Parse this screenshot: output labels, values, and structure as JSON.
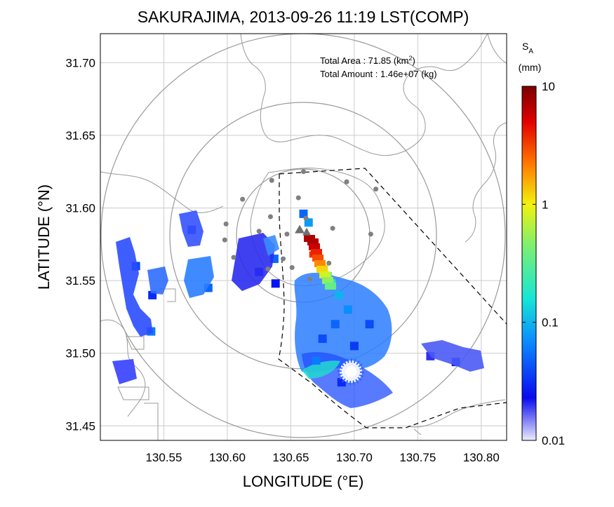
{
  "chart_data": {
    "type": "heatmap",
    "title": "SAKURAJIMA, 2013-09-26 11:19 LST(COMP)",
    "xlabel": "LONGITUDE (°E)",
    "ylabel": "LATITUDE (°N)",
    "xlim": [
      130.5,
      130.82
    ],
    "ylim": [
      31.44,
      31.72
    ],
    "xticks": [
      "130.55",
      "130.60",
      "130.65",
      "130.70",
      "130.75",
      "130.80"
    ],
    "yticks": [
      "31.45",
      "31.50",
      "31.55",
      "31.60",
      "31.65",
      "31.70"
    ],
    "annotation": {
      "area_label": "Total Area",
      "area_value": "71.85",
      "area_unit_base": "(km",
      "area_unit_exp": "2",
      "area_unit_close": ")",
      "amount_label": "Total Amount",
      "amount_value": "1.46e+07",
      "amount_unit": "(kg)"
    },
    "colorbar": {
      "symbol": "S",
      "subscript": "A",
      "unit": "(mm)",
      "scale": "log",
      "range": [
        0.01,
        10
      ],
      "ticks": [
        "10",
        "1",
        "0.1",
        "0.01"
      ],
      "colormap": [
        "#ececfd",
        "#0a0af0",
        "#0a8cff",
        "#16e6d6",
        "#f2f20c",
        "#ff7a00",
        "#e30000",
        "#7a0000"
      ]
    },
    "volcano": {
      "lon": 130.657,
      "lat": 31.585,
      "marker": "triangle"
    },
    "range_circles_km": [
      5,
      10,
      15
    ],
    "stations": [
      [
        130.635,
        31.619
      ],
      [
        130.66,
        31.625
      ],
      [
        130.694,
        31.618
      ],
      [
        130.717,
        31.613
      ],
      [
        130.612,
        31.606
      ],
      [
        130.656,
        31.607
      ],
      [
        130.634,
        31.594
      ],
      [
        130.662,
        31.593
      ],
      [
        130.599,
        31.589
      ],
      [
        130.625,
        31.584
      ],
      [
        130.683,
        31.586
      ],
      [
        130.713,
        31.582
      ],
      [
        130.647,
        31.582
      ],
      [
        130.598,
        31.578
      ],
      [
        130.605,
        31.566
      ],
      [
        130.644,
        31.565
      ],
      [
        130.68,
        31.562
      ],
      [
        130.632,
        31.558
      ],
      [
        130.651,
        31.559
      ],
      [
        130.665,
        31.551
      ]
    ],
    "deposit_cells": [
      {
        "lon": 130.668,
        "lat": 31.574,
        "value": 6.0
      },
      {
        "lon": 130.67,
        "lat": 31.571,
        "value": 7.0
      },
      {
        "lon": 130.667,
        "lat": 31.568,
        "value": 3.5
      },
      {
        "lon": 130.671,
        "lat": 31.566,
        "value": 2.5
      },
      {
        "lon": 130.673,
        "lat": 31.562,
        "value": 1.2
      },
      {
        "lon": 130.676,
        "lat": 31.558,
        "value": 0.6
      },
      {
        "lon": 130.679,
        "lat": 31.553,
        "value": 0.35
      },
      {
        "lon": 130.682,
        "lat": 31.548,
        "value": 0.2
      },
      {
        "lon": 130.664,
        "lat": 31.59,
        "value": 0.08
      },
      {
        "lon": 130.66,
        "lat": 31.596,
        "value": 0.05
      },
      {
        "lon": 130.688,
        "lat": 31.54,
        "value": 0.1
      },
      {
        "lon": 130.695,
        "lat": 31.53,
        "value": 0.07
      },
      {
        "lon": 130.685,
        "lat": 31.52,
        "value": 0.05
      },
      {
        "lon": 130.675,
        "lat": 31.51,
        "value": 0.04
      },
      {
        "lon": 130.7,
        "lat": 31.505,
        "value": 0.035
      },
      {
        "lon": 130.712,
        "lat": 31.52,
        "value": 0.04
      },
      {
        "lon": 130.67,
        "lat": 31.495,
        "value": 0.06
      },
      {
        "lon": 130.69,
        "lat": 31.48,
        "value": 0.03
      },
      {
        "lon": 130.625,
        "lat": 31.556,
        "value": 0.03
      },
      {
        "lon": 130.638,
        "lat": 31.548,
        "value": 0.025
      },
      {
        "lon": 130.637,
        "lat": 31.565,
        "value": 0.05
      },
      {
        "lon": 130.572,
        "lat": 31.585,
        "value": 0.03
      },
      {
        "lon": 130.528,
        "lat": 31.56,
        "value": 0.04
      },
      {
        "lon": 130.541,
        "lat": 31.54,
        "value": 0.03
      },
      {
        "lon": 130.54,
        "lat": 31.515,
        "value": 0.06
      },
      {
        "lon": 130.585,
        "lat": 31.545,
        "value": 0.05
      },
      {
        "lon": 130.76,
        "lat": 31.498,
        "value": 0.02
      },
      {
        "lon": 130.78,
        "lat": 31.494,
        "value": 0.025
      }
    ]
  }
}
